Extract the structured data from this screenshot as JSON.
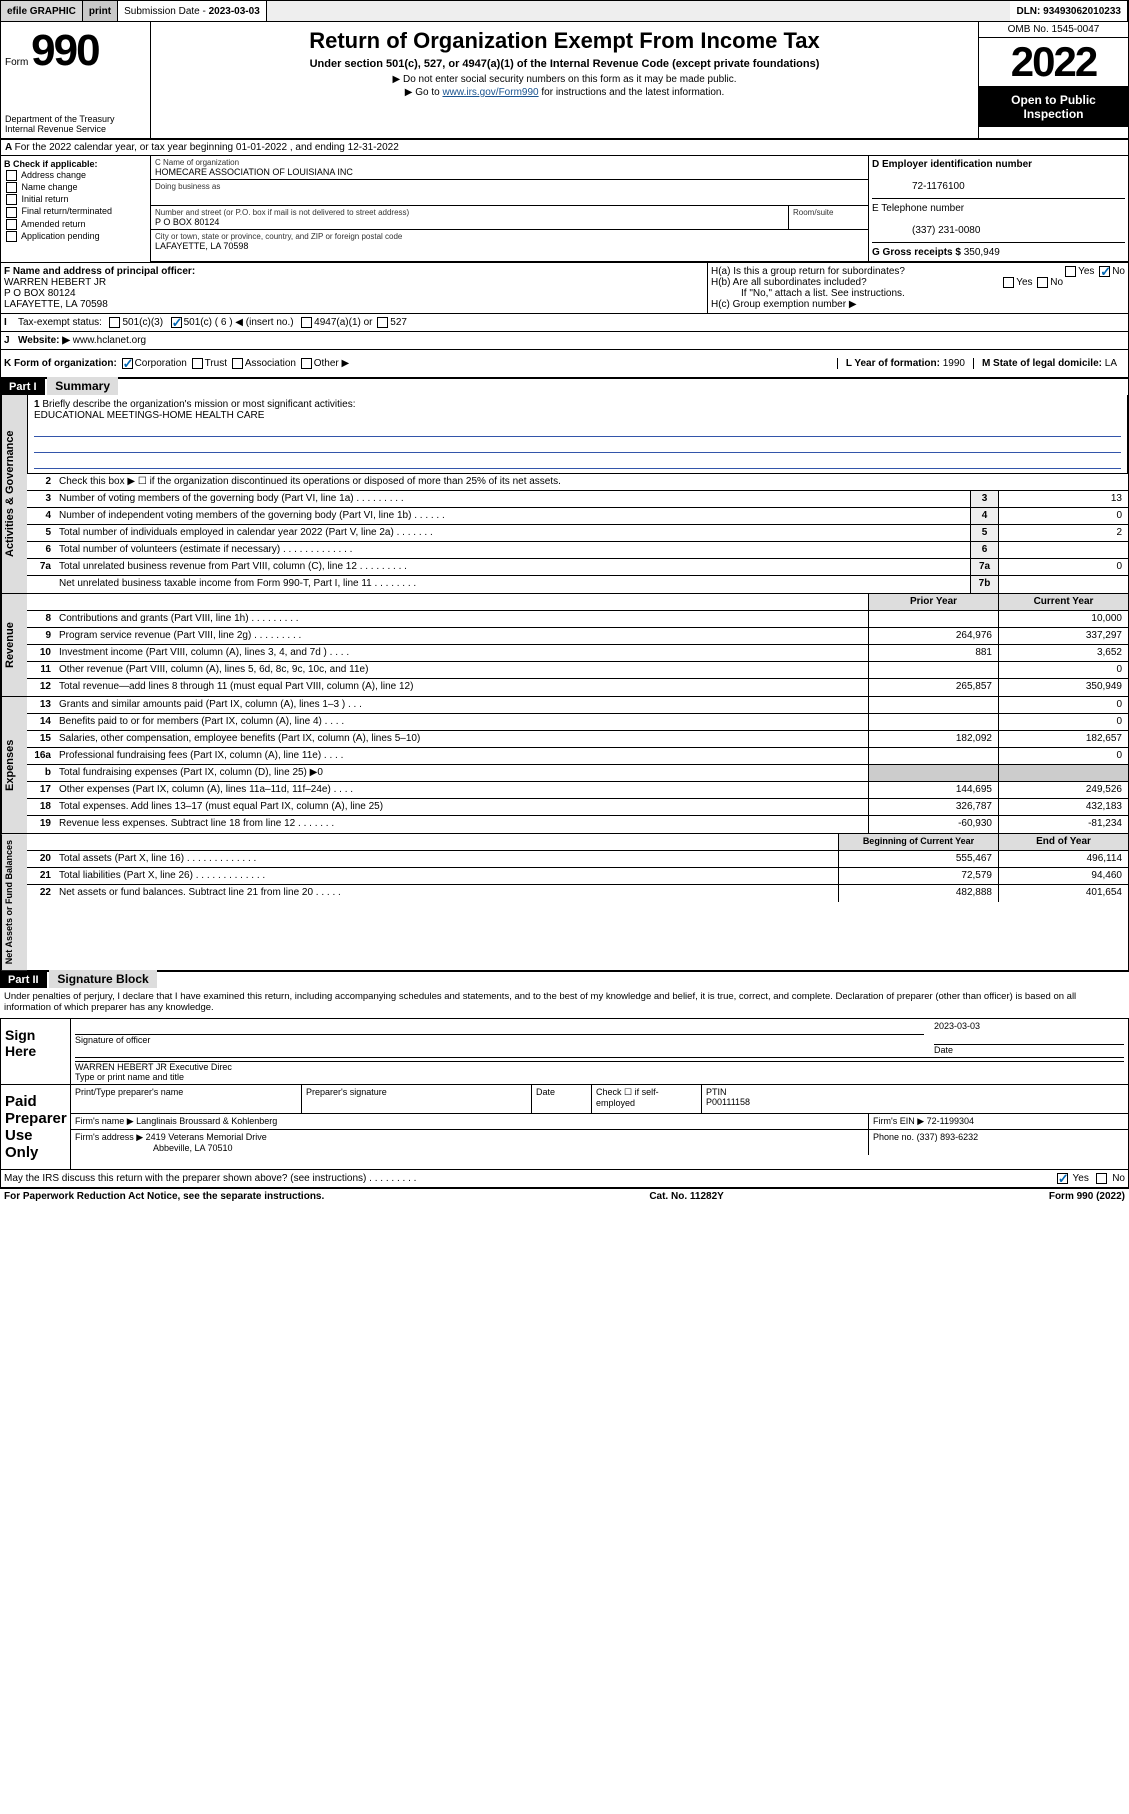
{
  "topbar": {
    "efile": "efile GRAPHIC",
    "print": "print",
    "sub_label": "Submission Date -",
    "sub_date": "2023-03-03",
    "dln": "DLN: 93493062010233"
  },
  "hdr": {
    "form_word": "Form",
    "form_num": "990",
    "dept": "Department of the Treasury\nInternal Revenue Service",
    "title": "Return of Organization Exempt From Income Tax",
    "sub": "Under section 501(c), 527, or 4947(a)(1) of the Internal Revenue Code (except private foundations)",
    "note1": "▶ Do not enter social security numbers on this form as it may be made public.",
    "note2_pre": "▶ Go to ",
    "note2_link": "www.irs.gov/Form990",
    "note2_post": " for instructions and the latest information.",
    "omb": "OMB No. 1545-0047",
    "year": "2022",
    "open": "Open to Public Inspection"
  },
  "rowA": "For the 2022 calendar year, or tax year beginning 01-01-2022   , and ending 12-31-2022",
  "boxB": {
    "title": "B Check if applicable:",
    "opts": [
      "Address change",
      "Name change",
      "Initial return",
      "Final return/terminated",
      "Amended return",
      "Application pending"
    ]
  },
  "boxC": {
    "name_lbl": "C Name of organization",
    "name": "HOMECARE ASSOCIATION OF LOUISIANA INC",
    "dba_lbl": "Doing business as",
    "dba": "",
    "addr_lbl": "Number and street (or P.O. box if mail is not delivered to street address)",
    "room_lbl": "Room/suite",
    "addr": "P O BOX 80124",
    "city_lbl": "City or town, state or province, country, and ZIP or foreign postal code",
    "city": "LAFAYETTE, LA  70598"
  },
  "boxD": {
    "lbl": "D Employer identification number",
    "val": "72-1176100"
  },
  "boxE": {
    "lbl": "E Telephone number",
    "val": "(337) 231-0080"
  },
  "boxG": {
    "lbl": "G Gross receipts $",
    "val": "350,949"
  },
  "boxF": {
    "lbl": "F  Name and address of principal officer:",
    "line1": "WARREN HEBERT JR",
    "line2": "P O BOX 80124",
    "line3": "LAFAYETTE, LA  70598"
  },
  "boxH": {
    "a": "H(a)  Is this a group return for subordinates?",
    "b": "H(b)  Are all subordinates included?",
    "b_note": "If \"No,\" attach a list. See instructions.",
    "c": "H(c)  Group exemption number ▶",
    "yes": "Yes",
    "no": "No"
  },
  "rowI": {
    "lbl": "Tax-exempt status:",
    "o1": "501(c)(3)",
    "o2": "501(c) ( 6 ) ◀ (insert no.)",
    "o3": "4947(a)(1) or",
    "o4": "527"
  },
  "rowJ": {
    "lbl": "Website: ▶",
    "val": "www.hclanet.org"
  },
  "rowK": {
    "lbl": "K Form of organization:",
    "o1": "Corporation",
    "o2": "Trust",
    "o3": "Association",
    "o4": "Other ▶"
  },
  "rowL": {
    "lbl": "L Year of formation:",
    "val": "1990"
  },
  "rowM": {
    "lbl": "M State of legal domicile:",
    "val": "LA"
  },
  "part1": {
    "hdr": "Part I",
    "title": "Summary",
    "sidebar1": "Activities & Governance",
    "sidebar2": "Revenue",
    "sidebar3": "Expenses",
    "sidebar4": "Net Assets or Fund Balances",
    "l1_lbl": "Briefly describe the organization's mission or most significant activities:",
    "l1_val": "EDUCATIONAL MEETINGS-HOME HEALTH CARE",
    "l2": "Check this box ▶ ☐  if the organization discontinued its operations or disposed of more than 25% of its net assets.",
    "lines_gov": [
      {
        "n": "3",
        "t": "Number of voting members of the governing body (Part VI, line 1a)   .    .    .    .    .    .    .    .    .",
        "b": "3",
        "v": "13"
      },
      {
        "n": "4",
        "t": "Number of independent voting members of the governing body (Part VI, line 1b)  .    .    .    .    .    .",
        "b": "4",
        "v": "0"
      },
      {
        "n": "5",
        "t": "Total number of individuals employed in calendar year 2022 (Part V, line 2a)  .    .    .    .    .    .    .",
        "b": "5",
        "v": "2"
      },
      {
        "n": "6",
        "t": "Total number of volunteers (estimate if necessary)   .    .    .    .    .    .    .    .    .    .    .    .    .",
        "b": "6",
        "v": ""
      },
      {
        "n": "7a",
        "t": "Total unrelated business revenue from Part VIII, column (C), line 12   .    .    .    .    .    .    .    .    .",
        "b": "7a",
        "v": "0"
      },
      {
        "n": "",
        "t": "Net unrelated business taxable income from Form 990-T, Part I, line 11   .    .    .    .    .    .    .    .",
        "b": "7b",
        "v": ""
      }
    ],
    "col_prior": "Prior Year",
    "col_curr": "Current Year",
    "lines_rev": [
      {
        "n": "8",
        "t": "Contributions and grants (Part VIII, line 1h)   .    .    .    .    .    .    .    .    .",
        "p": "",
        "c": "10,000"
      },
      {
        "n": "9",
        "t": "Program service revenue (Part VIII, line 2g)   .    .    .    .    .    .    .    .    .",
        "p": "264,976",
        "c": "337,297"
      },
      {
        "n": "10",
        "t": "Investment income (Part VIII, column (A), lines 3, 4, and 7d )   .    .    .    .",
        "p": "881",
        "c": "3,652"
      },
      {
        "n": "11",
        "t": "Other revenue (Part VIII, column (A), lines 5, 6d, 8c, 9c, 10c, and 11e)",
        "p": "",
        "c": "0"
      },
      {
        "n": "12",
        "t": "Total revenue—add lines 8 through 11 (must equal Part VIII, column (A), line 12)",
        "p": "265,857",
        "c": "350,949"
      }
    ],
    "lines_exp": [
      {
        "n": "13",
        "t": "Grants and similar amounts paid (Part IX, column (A), lines 1–3 )   .    .    .",
        "p": "",
        "c": "0"
      },
      {
        "n": "14",
        "t": "Benefits paid to or for members (Part IX, column (A), line 4)   .    .    .    .",
        "p": "",
        "c": "0"
      },
      {
        "n": "15",
        "t": "Salaries, other compensation, employee benefits (Part IX, column (A), lines 5–10)",
        "p": "182,092",
        "c": "182,657"
      },
      {
        "n": "16a",
        "t": "Professional fundraising fees (Part IX, column (A), line 11e)   .    .    .    .",
        "p": "",
        "c": "0"
      },
      {
        "n": "b",
        "t": "Total fundraising expenses (Part IX, column (D), line 25) ▶0",
        "p": "—",
        "c": "—"
      },
      {
        "n": "17",
        "t": "Other expenses (Part IX, column (A), lines 11a–11d, 11f–24e)   .    .    .    .",
        "p": "144,695",
        "c": "249,526"
      },
      {
        "n": "18",
        "t": "Total expenses. Add lines 13–17 (must equal Part IX, column (A), line 25)",
        "p": "326,787",
        "c": "432,183"
      },
      {
        "n": "19",
        "t": "Revenue less expenses. Subtract line 18 from line 12   .    .    .    .    .    .    .",
        "p": "-60,930",
        "c": "-81,234"
      }
    ],
    "col_beg": "Beginning of Current Year",
    "col_end": "End of Year",
    "lines_net": [
      {
        "n": "20",
        "t": "Total assets (Part X, line 16)   .    .    .    .    .    .    .    .    .    .    .    .    .",
        "p": "555,467",
        "c": "496,114"
      },
      {
        "n": "21",
        "t": "Total liabilities (Part X, line 26)   .    .    .    .    .    .    .    .    .    .    .    .    .",
        "p": "72,579",
        "c": "94,460"
      },
      {
        "n": "22",
        "t": "Net assets or fund balances. Subtract line 21 from line 20   .    .    .    .    .",
        "p": "482,888",
        "c": "401,654"
      }
    ]
  },
  "part2": {
    "hdr": "Part II",
    "title": "Signature Block",
    "penalty": "Under penalties of perjury, I declare that I have examined this return, including accompanying schedules and statements, and to the best of my knowledge and belief, it is true, correct, and complete. Declaration of preparer (other than officer) is based on all information of which preparer has any knowledge.",
    "sign_here": "Sign Here",
    "sig_officer_lbl": "Signature of officer",
    "sig_date": "2023-03-03",
    "date_lbl": "Date",
    "sig_name": "WARREN HEBERT JR  Executive Direc",
    "sig_name_lbl": "Type or print name and title",
    "paid": "Paid Preparer Use Only",
    "prep_name_lbl": "Print/Type preparer's name",
    "prep_sig_lbl": "Preparer's signature",
    "prep_date_lbl": "Date",
    "check_self": "Check ☐ if self-employed",
    "ptin_lbl": "PTIN",
    "ptin": "P00111158",
    "firm_name_lbl": "Firm's name    ▶",
    "firm_name": "Langlinais Broussard & Kohlenberg",
    "firm_ein_lbl": "Firm's EIN ▶",
    "firm_ein": "72-1199304",
    "firm_addr_lbl": "Firm's address ▶",
    "firm_addr1": "2419 Veterans Memorial Drive",
    "firm_addr2": "Abbeville, LA  70510",
    "phone_lbl": "Phone no.",
    "phone": "(337) 893-6232",
    "discuss": "May the IRS discuss this return with the preparer shown above? (see instructions)   .    .    .    .    .    .    .    .    .",
    "yes": "Yes",
    "no": "No"
  },
  "footer": {
    "left": "For Paperwork Reduction Act Notice, see the separate instructions.",
    "mid": "Cat. No. 11282Y",
    "right": "Form 990 (2022)"
  }
}
